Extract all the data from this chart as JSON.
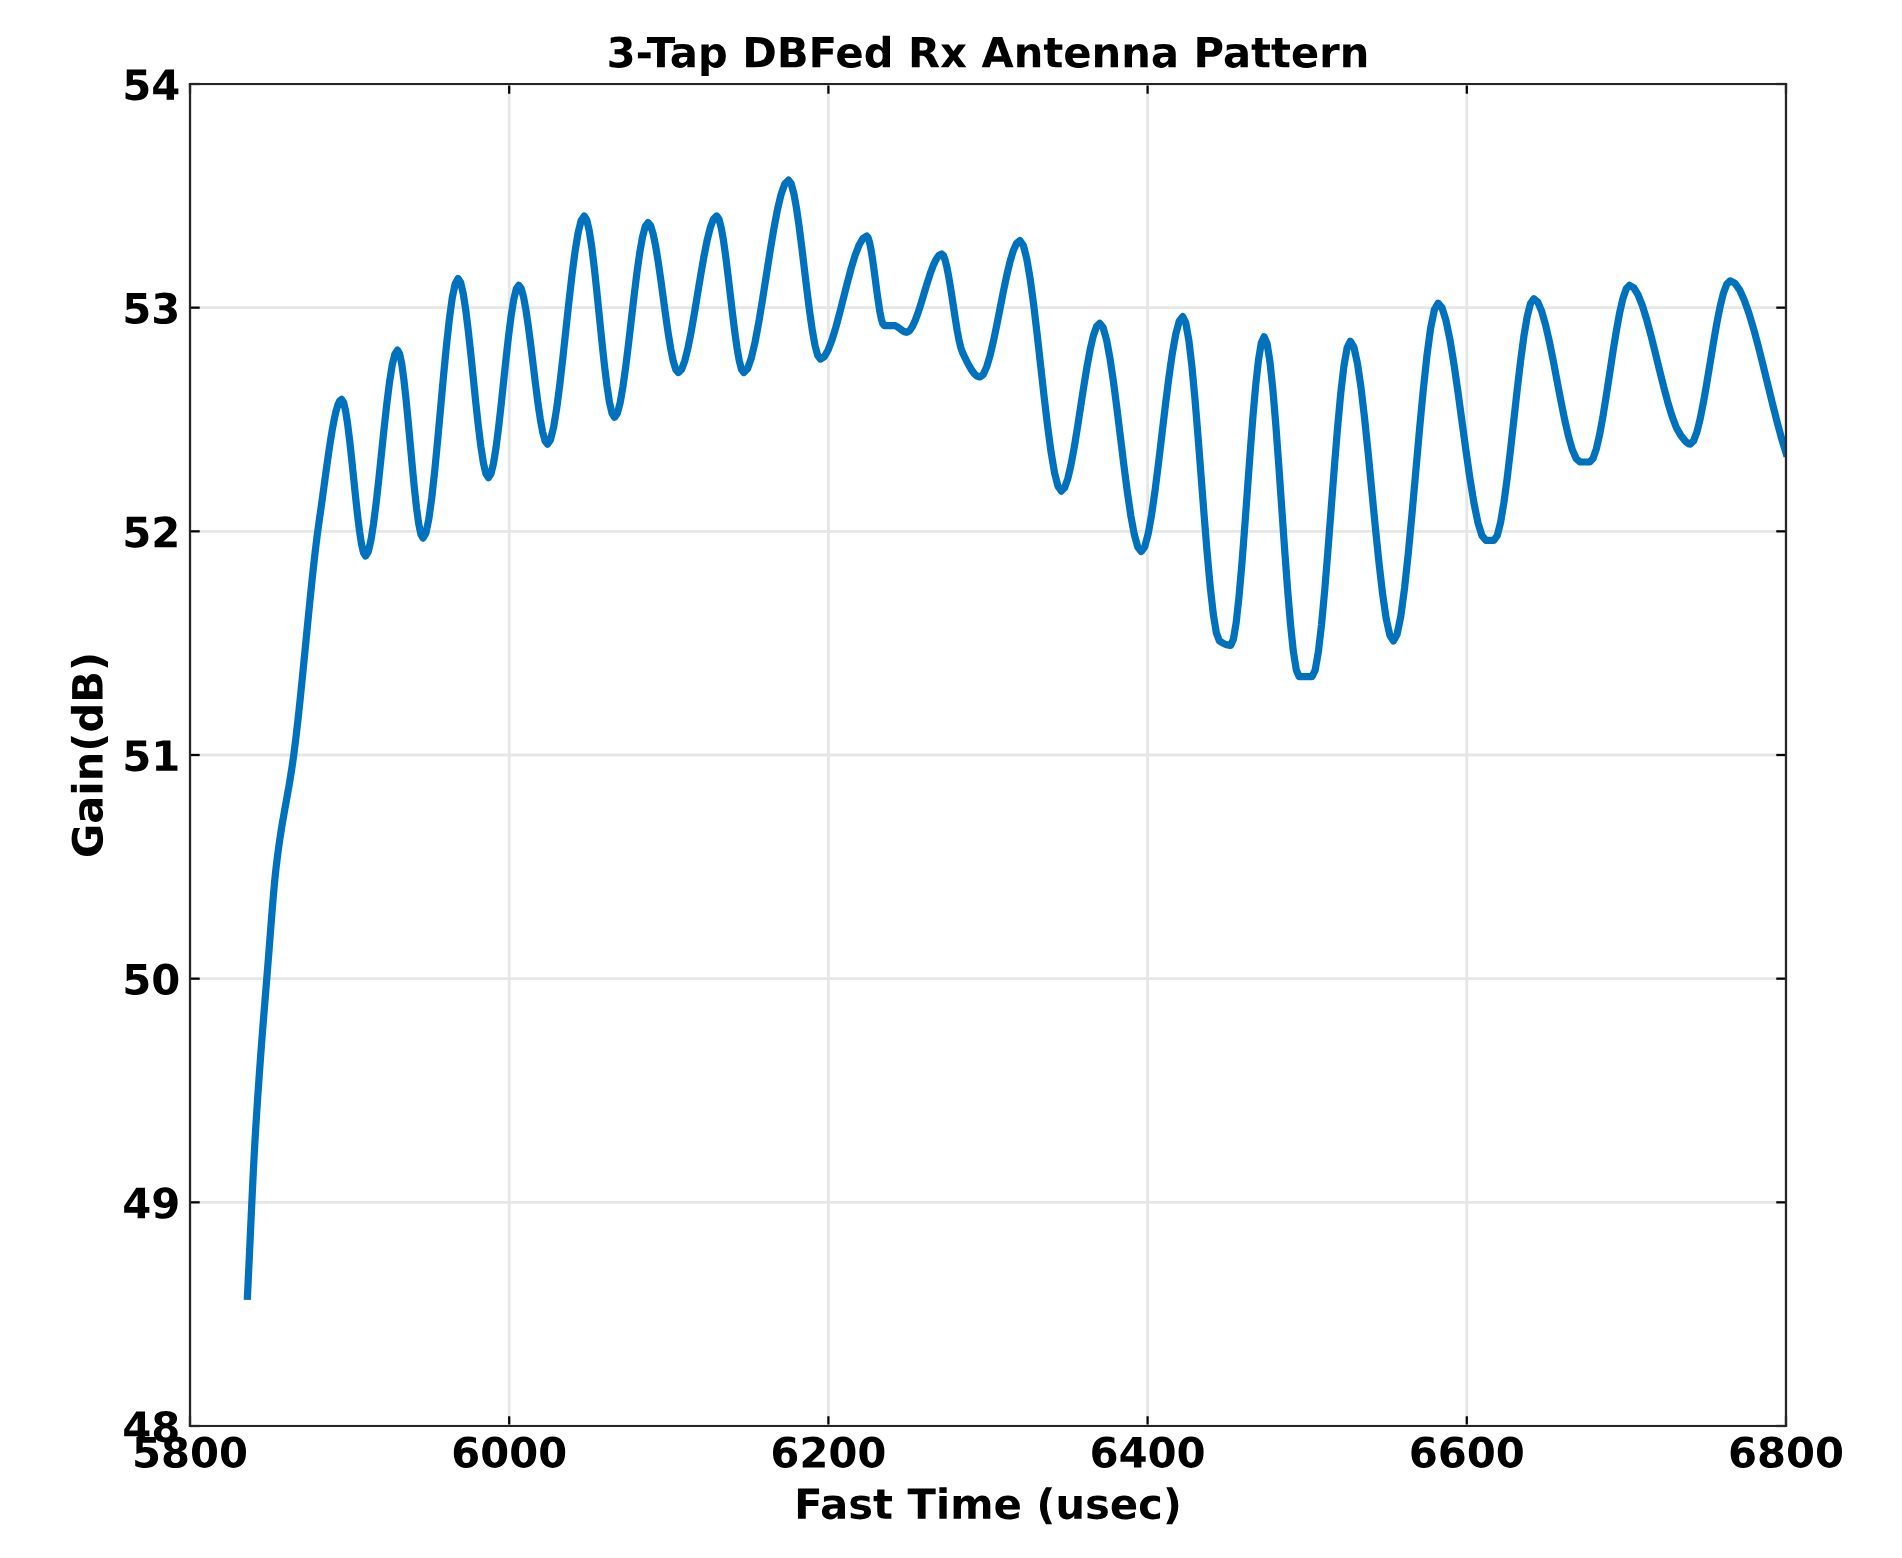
{
  "chart_data": {
    "type": "line",
    "title": "3-Tap DBFed Rx Antenna Pattern",
    "xlabel": "Fast Time (usec)",
    "ylabel": "Gain(dB)",
    "xlim": [
      5800,
      6800
    ],
    "xticks": [
      5800,
      6000,
      6200,
      6400,
      6600,
      6800
    ],
    "ylim": [
      48,
      54
    ],
    "yticks": [
      48,
      49,
      50,
      51,
      52,
      53,
      54
    ],
    "grid": true,
    "marker": "none",
    "line_style": "solid",
    "series": [
      {
        "color": "#0072bd",
        "x": [
          5836,
          5841,
          5849,
          5854,
          5865,
          5881,
          5895,
          5910,
          5930,
          5946,
          5968,
          5987,
          6006,
          6024,
          6047,
          6066,
          6087,
          6106,
          6130,
          6147,
          6175,
          6195,
          6224,
          6235,
          6241,
          6249,
          6271,
          6284,
          6295,
          6320,
          6346,
          6370,
          6396,
          6422,
          6445,
          6452,
          6473,
          6495,
          6503,
          6527,
          6554,
          6582,
          6612,
          6617,
          6642,
          6671,
          6677,
          6702,
          6734,
          6740,
          6765,
          6800
        ],
        "values": [
          48.58,
          49.31,
          50.08,
          50.5,
          51.0,
          52.05,
          52.59,
          51.89,
          52.81,
          51.97,
          53.13,
          52.24,
          53.1,
          52.39,
          53.41,
          52.51,
          53.38,
          52.71,
          53.41,
          52.71,
          53.57,
          52.77,
          53.32,
          52.92,
          52.92,
          52.89,
          53.24,
          52.8,
          52.69,
          53.3,
          52.18,
          52.93,
          51.91,
          52.96,
          51.51,
          51.49,
          52.87,
          51.35,
          51.35,
          52.85,
          51.51,
          53.02,
          51.96,
          51.96,
          53.04,
          52.31,
          52.31,
          53.1,
          52.43,
          52.39,
          53.12,
          52.35
        ]
      }
    ]
  }
}
